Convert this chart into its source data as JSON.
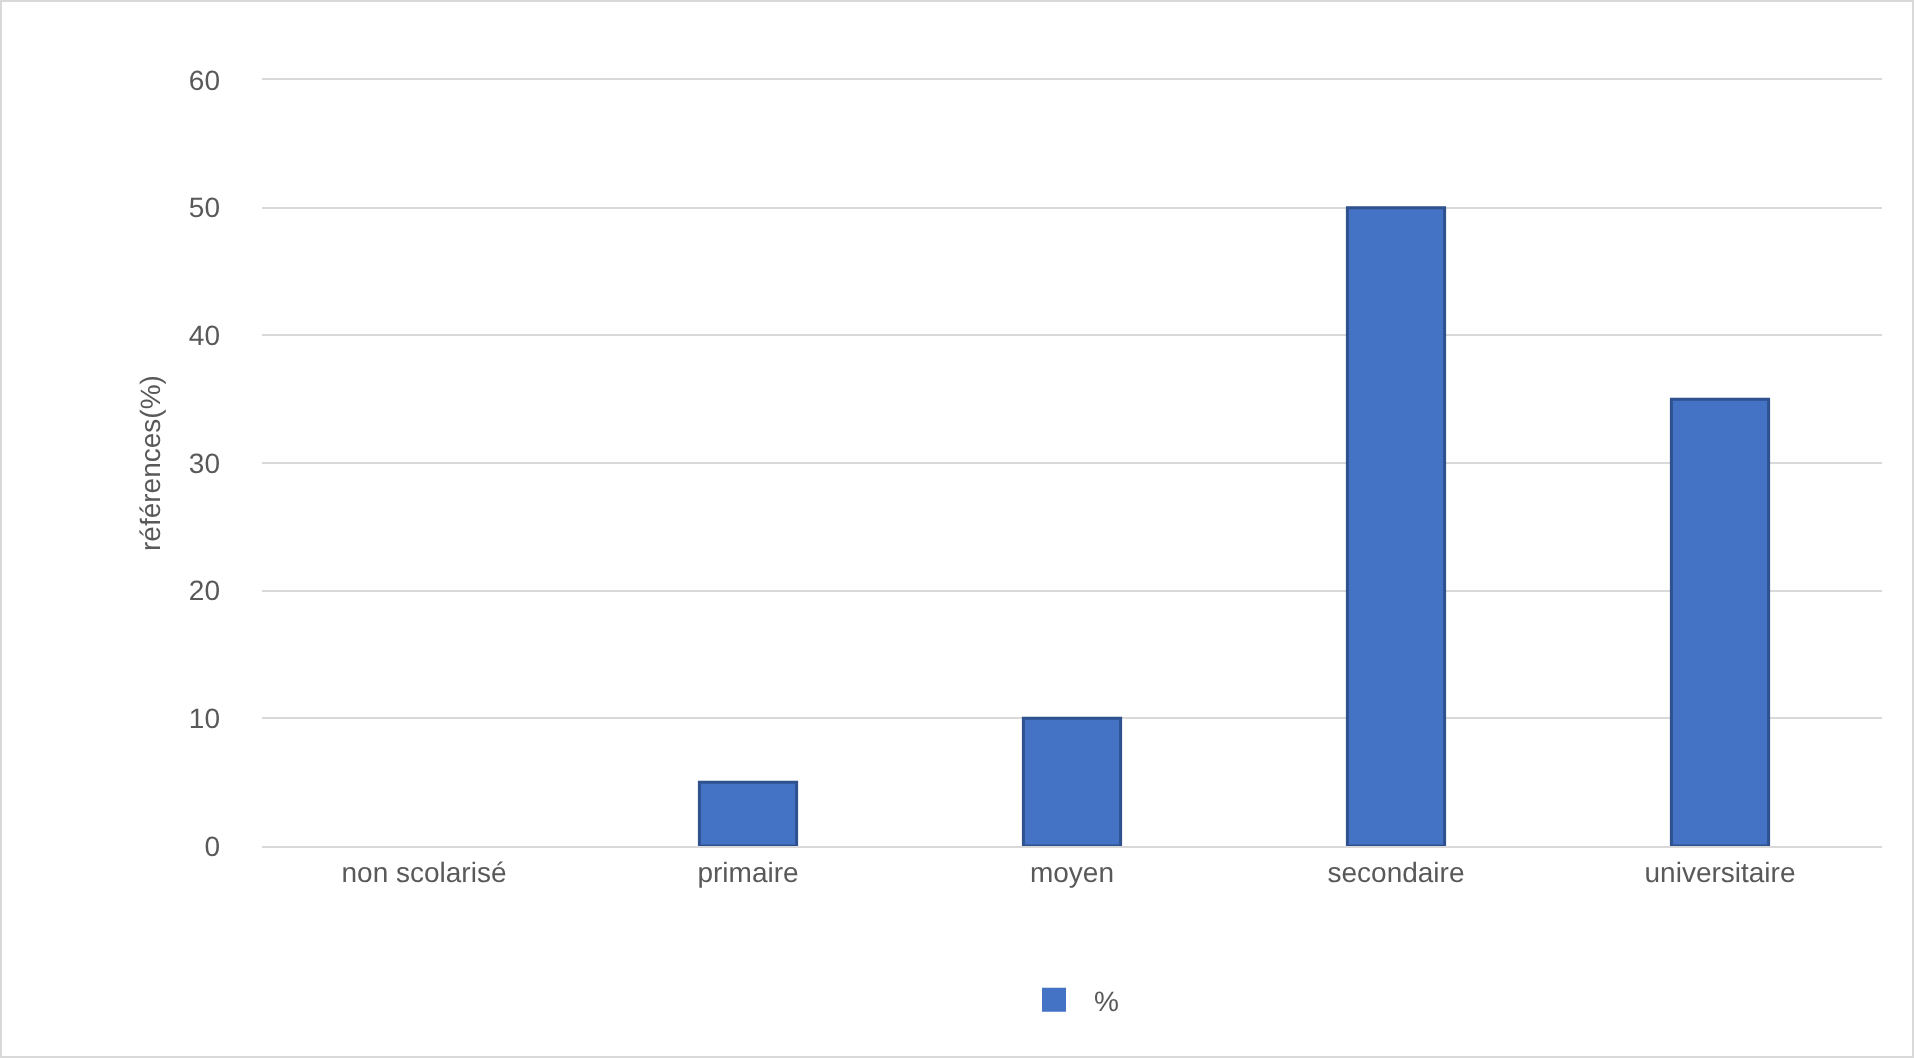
{
  "chart_data": {
    "type": "bar",
    "ylabel": "références(%)",
    "categories": [
      "non scolarisé",
      "primaire",
      "moyen",
      "secondaire",
      "universitaire"
    ],
    "series": [
      {
        "name": "%",
        "color": "#4472c4",
        "values": [
          0,
          5,
          10,
          50,
          35
        ]
      }
    ],
    "ylim": [
      0,
      60
    ],
    "yticks": [
      0,
      10,
      20,
      30,
      40,
      50,
      60
    ],
    "grid": "y",
    "legend": "bottom"
  }
}
